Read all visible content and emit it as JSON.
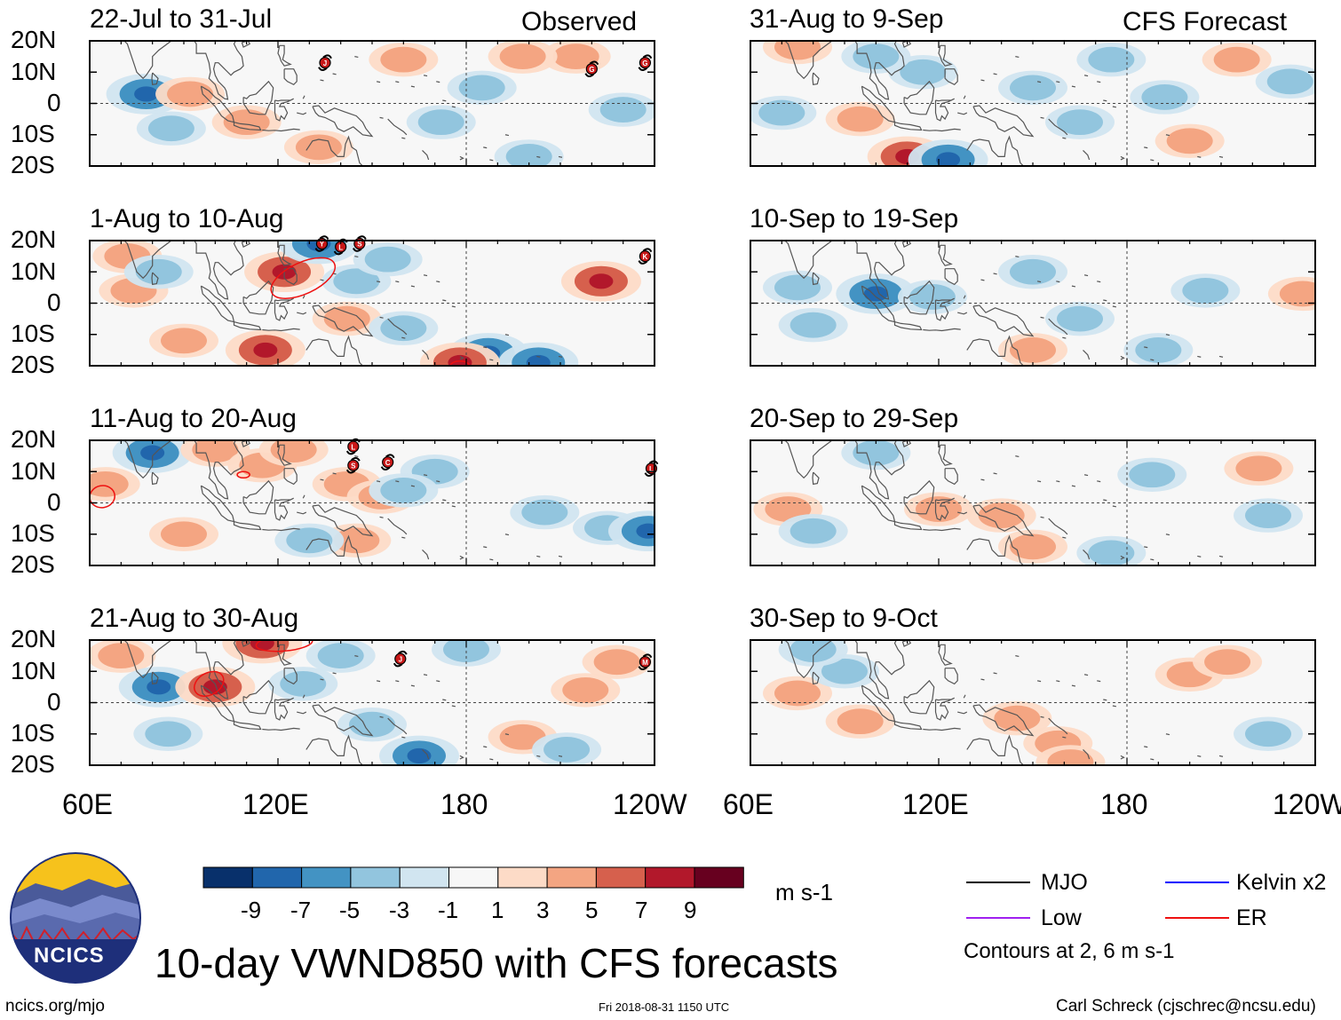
{
  "colors": {
    "palette": [
      "#08306b",
      "#2166ac",
      "#4393c3",
      "#92c5de",
      "#d1e5f0",
      "#f7f7f7",
      "#fddbc7",
      "#f4a582",
      "#d6604d",
      "#b2182b",
      "#67001f"
    ],
    "mjo": "#000000",
    "kelvin": "#0000ff",
    "low": "#a020f0",
    "er": "#ee1111",
    "coast": "#555555"
  },
  "chart_data": {
    "type": "heatmap",
    "title": "10-day VWND850 with CFS forecasts",
    "variable": "VWND850",
    "units": "m s-1",
    "headers": {
      "observed": "Observed",
      "forecast": "CFS Forecast"
    },
    "lat_ticks": [
      "20N",
      "10N",
      "0",
      "10S",
      "20S"
    ],
    "lon_ticks": [
      "60E",
      "120E",
      "180",
      "120W"
    ],
    "lat_range": [
      -20,
      20
    ],
    "lon_range": [
      60,
      240
    ],
    "colorbar_levels": [
      "-9",
      "-7",
      "-5",
      "-3",
      "-1",
      "1",
      "3",
      "5",
      "7",
      "9"
    ],
    "legend": {
      "mjo": "MJO",
      "kelvin": "Kelvin x2",
      "low": "Low",
      "er": "ER",
      "note": "Contours at 2, 6 m s-1"
    },
    "panels": [
      {
        "title": "22-Jul to 31-Jul",
        "kind": "observed"
      },
      {
        "title": "1-Aug to 10-Aug",
        "kind": "observed"
      },
      {
        "title": "11-Aug to 20-Aug",
        "kind": "observed"
      },
      {
        "title": "21-Aug to 30-Aug",
        "kind": "observed"
      },
      {
        "title": "31-Aug to 9-Sep",
        "kind": "forecast"
      },
      {
        "title": "10-Sep to 19-Sep",
        "kind": "forecast"
      },
      {
        "title": "20-Sep to 29-Sep",
        "kind": "forecast"
      },
      {
        "title": "30-Sep to 9-Oct",
        "kind": "forecast"
      }
    ],
    "anomalies": [
      [
        {
          "lon": 78,
          "lat": 3,
          "v": -5
        },
        {
          "lon": 92,
          "lat": 3,
          "v": 3
        },
        {
          "lon": 86,
          "lat": -8,
          "v": -3
        },
        {
          "lon": 110,
          "lat": -6,
          "v": 3
        },
        {
          "lon": 133,
          "lat": -14,
          "v": 3
        },
        {
          "lon": 160,
          "lat": 14,
          "v": 3
        },
        {
          "lon": 172,
          "lat": -6,
          "v": -3
        },
        {
          "lon": 200,
          "lat": -17,
          "v": -3
        },
        {
          "lon": 215,
          "lat": 15,
          "v": 3
        },
        {
          "lon": 198,
          "lat": 15,
          "v": 3
        },
        {
          "lon": 230,
          "lat": -2,
          "v": -3
        },
        {
          "lon": 185,
          "lat": 5,
          "v": -3
        }
      ],
      [
        {
          "lon": 72,
          "lat": 15,
          "v": 3
        },
        {
          "lon": 74,
          "lat": 4,
          "v": 3
        },
        {
          "lon": 90,
          "lat": -12,
          "v": 3
        },
        {
          "lon": 116,
          "lat": -15,
          "v": 5
        },
        {
          "lon": 122,
          "lat": 10,
          "v": 5
        },
        {
          "lon": 133,
          "lat": 19,
          "v": -5
        },
        {
          "lon": 142,
          "lat": -5,
          "v": 3
        },
        {
          "lon": 160,
          "lat": -8,
          "v": -3
        },
        {
          "lon": 187,
          "lat": -16,
          "v": -5
        },
        {
          "lon": 203,
          "lat": -19,
          "v": -5
        },
        {
          "lon": 223,
          "lat": 7,
          "v": 5
        },
        {
          "lon": 82,
          "lat": 10,
          "v": -3
        },
        {
          "lon": 145,
          "lat": 7,
          "v": -3
        },
        {
          "lon": 155,
          "lat": 14,
          "v": -3
        },
        {
          "lon": 178,
          "lat": -19,
          "v": 5
        }
      ],
      [
        {
          "lon": 65,
          "lat": 6,
          "v": 3
        },
        {
          "lon": 80,
          "lat": 16,
          "v": -5
        },
        {
          "lon": 100,
          "lat": 17,
          "v": 3
        },
        {
          "lon": 115,
          "lat": 12,
          "v": 3
        },
        {
          "lon": 125,
          "lat": 17,
          "v": 3
        },
        {
          "lon": 142,
          "lat": 6,
          "v": 3
        },
        {
          "lon": 153,
          "lat": 2,
          "v": 3
        },
        {
          "lon": 145,
          "lat": -12,
          "v": 3
        },
        {
          "lon": 170,
          "lat": 10,
          "v": -3
        },
        {
          "lon": 205,
          "lat": -3,
          "v": -3
        },
        {
          "lon": 225,
          "lat": -8,
          "v": -3
        },
        {
          "lon": 238,
          "lat": -9,
          "v": -5
        },
        {
          "lon": 160,
          "lat": 4,
          "v": -3
        },
        {
          "lon": 90,
          "lat": -10,
          "v": 3
        },
        {
          "lon": 130,
          "lat": -12,
          "v": -3
        }
      ],
      [
        {
          "lon": 70,
          "lat": 15,
          "v": 3
        },
        {
          "lon": 82,
          "lat": 5,
          "v": -5
        },
        {
          "lon": 85,
          "lat": -10,
          "v": -3
        },
        {
          "lon": 100,
          "lat": 5,
          "v": 5
        },
        {
          "lon": 115,
          "lat": 19,
          "v": 5
        },
        {
          "lon": 128,
          "lat": 6,
          "v": -3
        },
        {
          "lon": 150,
          "lat": -7,
          "v": -3
        },
        {
          "lon": 165,
          "lat": -17,
          "v": -5
        },
        {
          "lon": 198,
          "lat": -11,
          "v": 3
        },
        {
          "lon": 218,
          "lat": 4,
          "v": 3
        },
        {
          "lon": 180,
          "lat": 17,
          "v": -3
        },
        {
          "lon": 228,
          "lat": 13,
          "v": 3
        },
        {
          "lon": 212,
          "lat": -15,
          "v": -3
        },
        {
          "lon": 140,
          "lat": 15,
          "v": -3
        }
      ],
      [
        {
          "lon": 70,
          "lat": -3,
          "v": -3
        },
        {
          "lon": 75,
          "lat": 18,
          "v": 3
        },
        {
          "lon": 110,
          "lat": -17,
          "v": 5
        },
        {
          "lon": 123,
          "lat": -18,
          "v": -5
        },
        {
          "lon": 115,
          "lat": 10,
          "v": -3
        },
        {
          "lon": 150,
          "lat": 5,
          "v": -3
        },
        {
          "lon": 165,
          "lat": -6,
          "v": -3
        },
        {
          "lon": 200,
          "lat": -12,
          "v": 3
        },
        {
          "lon": 192,
          "lat": 2,
          "v": -3
        },
        {
          "lon": 215,
          "lat": 14,
          "v": 3
        },
        {
          "lon": 232,
          "lat": 7,
          "v": -3
        },
        {
          "lon": 95,
          "lat": -5,
          "v": 3
        },
        {
          "lon": 175,
          "lat": 14,
          "v": -3
        },
        {
          "lon": 100,
          "lat": 15,
          "v": -3
        }
      ],
      [
        {
          "lon": 75,
          "lat": 5,
          "v": -3
        },
        {
          "lon": 100,
          "lat": 3,
          "v": -5
        },
        {
          "lon": 118,
          "lat": 2,
          "v": -3
        },
        {
          "lon": 150,
          "lat": 10,
          "v": -3
        },
        {
          "lon": 165,
          "lat": -5,
          "v": -3
        },
        {
          "lon": 205,
          "lat": 4,
          "v": -3
        },
        {
          "lon": 236,
          "lat": 3,
          "v": 3
        },
        {
          "lon": 150,
          "lat": -15,
          "v": 3
        },
        {
          "lon": 190,
          "lat": -15,
          "v": -3
        },
        {
          "lon": 80,
          "lat": -7,
          "v": -3
        }
      ],
      [
        {
          "lon": 72,
          "lat": -2,
          "v": 3
        },
        {
          "lon": 80,
          "lat": -9,
          "v": -3
        },
        {
          "lon": 120,
          "lat": -2,
          "v": 3
        },
        {
          "lon": 140,
          "lat": -4,
          "v": 3
        },
        {
          "lon": 150,
          "lat": -14,
          "v": 3
        },
        {
          "lon": 188,
          "lat": 9,
          "v": -3
        },
        {
          "lon": 222,
          "lat": 11,
          "v": 3
        },
        {
          "lon": 225,
          "lat": -4,
          "v": -3
        },
        {
          "lon": 175,
          "lat": -16,
          "v": -3
        },
        {
          "lon": 100,
          "lat": 16,
          "v": -3
        }
      ],
      [
        {
          "lon": 75,
          "lat": 3,
          "v": 3
        },
        {
          "lon": 90,
          "lat": 10,
          "v": -3
        },
        {
          "lon": 95,
          "lat": -6,
          "v": 3
        },
        {
          "lon": 145,
          "lat": -5,
          "v": 3
        },
        {
          "lon": 158,
          "lat": -13,
          "v": 3
        },
        {
          "lon": 162,
          "lat": -19,
          "v": 3
        },
        {
          "lon": 200,
          "lat": 9,
          "v": 3
        },
        {
          "lon": 212,
          "lat": 13,
          "v": 3
        },
        {
          "lon": 225,
          "lat": -10,
          "v": -3
        },
        {
          "lon": 80,
          "lat": 17,
          "v": -3
        }
      ]
    ],
    "er_contours": [
      [],
      [
        {
          "lon": 128,
          "lat": 8,
          "rlon": 11,
          "rlat": 5,
          "rot": -25
        },
        {
          "lon": 178,
          "lat": -20,
          "rlon": 3,
          "rlat": 1.5,
          "rot": 0
        }
      ],
      [
        {
          "lon": 64,
          "lat": 2,
          "rlon": 4,
          "rlat": 3.5,
          "rot": -10
        },
        {
          "lon": 109,
          "lat": 9,
          "rlon": 2,
          "rlat": 1,
          "rot": 0
        }
      ],
      [
        {
          "lon": 98,
          "lat": 6,
          "rlon": 5,
          "rlat": 3.5,
          "rot": -30
        },
        {
          "lon": 122,
          "lat": 19,
          "rlon": 9,
          "rlat": 2.5,
          "rot": -5
        }
      ],
      [],
      [],
      [],
      []
    ],
    "storms": [
      [
        {
          "lon": 135,
          "lat": 13,
          "letter": "J"
        },
        {
          "lon": 220,
          "lat": 11,
          "letter": "G"
        },
        {
          "lon": 237,
          "lat": 13,
          "letter": "G"
        }
      ],
      [
        {
          "lon": 134,
          "lat": 19,
          "letter": "Y"
        },
        {
          "lon": 140,
          "lat": 18,
          "letter": "L"
        },
        {
          "lon": 146,
          "lat": 19,
          "letter": "S"
        },
        {
          "lon": 237,
          "lat": 15,
          "letter": "K"
        }
      ],
      [
        {
          "lon": 144,
          "lat": 18,
          "letter": "L"
        },
        {
          "lon": 144,
          "lat": 12,
          "letter": "S"
        },
        {
          "lon": 155,
          "lat": 13,
          "letter": "C"
        },
        {
          "lon": 239,
          "lat": 11,
          "letter": "L"
        }
      ],
      [
        {
          "lon": 159,
          "lat": 14,
          "letter": "J"
        },
        {
          "lon": 237,
          "lat": 13,
          "letter": "M"
        }
      ],
      [],
      [],
      [],
      []
    ]
  },
  "footer": {
    "logo_text": "NCICS",
    "site": "ncics.org/mjo",
    "timestamp": "Fri 2018-08-31 1150 UTC",
    "author": "Carl Schreck (cjschrec@ncsu.edu)"
  }
}
